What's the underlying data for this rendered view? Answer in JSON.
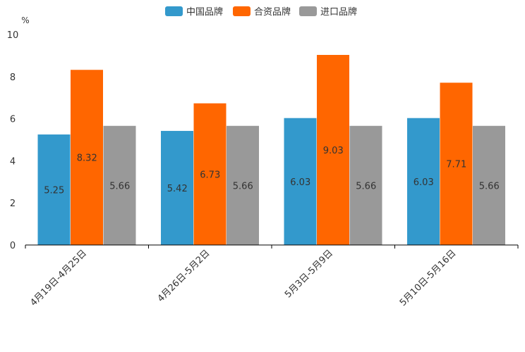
{
  "chart_data": {
    "type": "bar",
    "title": "",
    "unit_label": "%",
    "xlabel": "",
    "ylabel": "%",
    "ylim": [
      0,
      10
    ],
    "yticks": [
      0,
      2,
      4,
      6,
      8,
      10
    ],
    "grid": false,
    "legend_position": "top-center",
    "categories": [
      "4月19日-4月25日",
      "4月26日-5月2日",
      "5月3日-5月9日",
      "5月10日-5月16日"
    ],
    "series": [
      {
        "name": "中国品牌",
        "color": "#3399cc",
        "values": [
          5.25,
          5.42,
          6.03,
          6.03
        ]
      },
      {
        "name": "合资品牌",
        "color": "#ff6600",
        "values": [
          8.32,
          6.73,
          9.03,
          7.71
        ]
      },
      {
        "name": "进口品牌",
        "color": "#999999",
        "values": [
          5.66,
          5.66,
          5.66,
          5.66
        ]
      }
    ]
  }
}
